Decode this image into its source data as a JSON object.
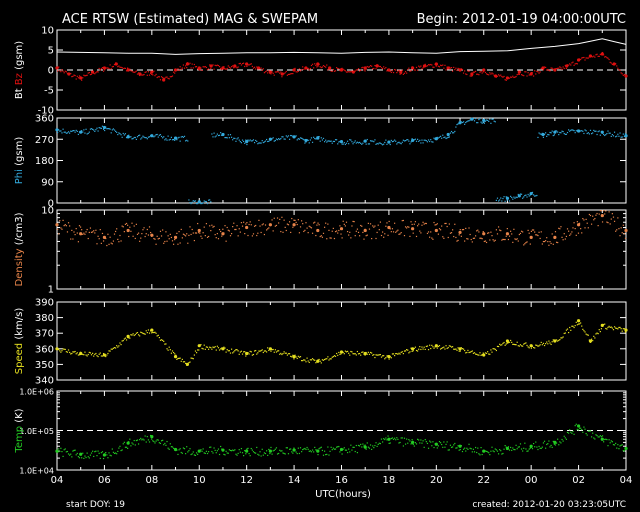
{
  "header": {
    "title": "ACE RTSW (Estimated) MAG & SWEPAM",
    "begin": "Begin: 2012-01-19 04:00:00UTC"
  },
  "footer": {
    "start_doy": "start DOY:  19",
    "created": "created: 2012-01-20 03:23:05UTC"
  },
  "colors": {
    "background": "#000000",
    "axes": "#ffffff",
    "bt": "#ffffff",
    "bz": "#e01010",
    "phi": "#33aadd",
    "density": "#e8844a",
    "speed": "#e6e020",
    "temp": "#22cc22"
  },
  "chart_data": {
    "type": "scatter",
    "x_axis": {
      "label": "UTC(hours)",
      "tick_labels": [
        "04",
        "06",
        "08",
        "10",
        "12",
        "14",
        "16",
        "18",
        "20",
        "22",
        "00",
        "02",
        "04"
      ],
      "range_hours": [
        0,
        24
      ]
    },
    "panels": [
      {
        "id": "mag",
        "ylabel_parts": [
          {
            "text": "Bt",
            "color": "#ffffff"
          },
          {
            "text": "Bz",
            "color": "#e01010"
          },
          {
            "text": "(gsm)",
            "color": "#ffffff"
          }
        ],
        "scale": "linear",
        "ylim": [
          -10,
          10
        ],
        "ticks": [
          10,
          5,
          0,
          -5,
          -10
        ],
        "tick_labels": [
          "10",
          "5",
          "0",
          "-5",
          "-10"
        ],
        "dashed_reference": 0,
        "series": [
          {
            "name": "Bt",
            "color": "#ffffff",
            "style": "line",
            "x": [
              0,
              1,
              2,
              3,
              4,
              5,
              6,
              7,
              8,
              9,
              10,
              11,
              12,
              13,
              14,
              15,
              16,
              17,
              18,
              19,
              20,
              21,
              22,
              22.5,
              23,
              23.5,
              24
            ],
            "values": [
              4.5,
              4.4,
              4.3,
              4.2,
              4.2,
              3.9,
              4.1,
              4.2,
              4.3,
              4.3,
              4.4,
              4.3,
              4.2,
              4.4,
              4.5,
              4.3,
              4.2,
              4.6,
              4.7,
              4.8,
              5.4,
              5.9,
              6.6,
              7.2,
              7.8,
              7.1,
              6.4
            ]
          },
          {
            "name": "Bz",
            "color": "#e01010",
            "style": "scatter",
            "x": [
              0,
              0.5,
              1,
              1.5,
              2,
              2.5,
              3,
              3.5,
              4,
              4.5,
              5,
              5.5,
              6,
              6.5,
              7,
              7.5,
              8,
              8.5,
              9,
              9.5,
              10,
              10.5,
              11,
              11.5,
              12,
              12.5,
              13,
              13.5,
              14,
              14.5,
              15,
              15.5,
              16,
              16.5,
              17,
              17.5,
              18,
              18.5,
              19,
              19.5,
              20,
              20.5,
              21,
              21.5,
              22,
              22.5,
              23,
              23.5,
              24
            ],
            "values": [
              0.5,
              -1,
              -2,
              -0.5,
              0.5,
              1.5,
              0,
              -1,
              -0.5,
              -2.5,
              0,
              1.5,
              0.5,
              1,
              0.5,
              1,
              1.5,
              0.5,
              -0.5,
              -1,
              0,
              0.5,
              1.5,
              0.5,
              0,
              -0.5,
              0.5,
              1,
              0,
              -0.5,
              0.5,
              1,
              1.5,
              0.5,
              0,
              -1,
              0,
              -1.5,
              -2,
              -0.5,
              -1,
              0.5,
              0,
              1,
              2.5,
              3.5,
              4,
              1.5,
              -1.5
            ]
          }
        ]
      },
      {
        "id": "phi",
        "ylabel_parts": [
          {
            "text": "Phi",
            "color": "#33aadd"
          },
          {
            "text": "(gsm)",
            "color": "#ffffff"
          }
        ],
        "scale": "linear",
        "ylim": [
          0,
          360
        ],
        "ticks": [
          360,
          270,
          180,
          90,
          0
        ],
        "tick_labels": [
          "360",
          "270",
          "180",
          "90",
          "0"
        ],
        "series": [
          {
            "name": "Phi",
            "color": "#33aadd",
            "style": "scatter",
            "x": [
              0,
              1,
              2,
              3,
              4,
              5,
              6,
              7,
              8,
              9,
              10,
              10.5,
              11,
              12,
              13,
              14,
              15,
              16,
              16.5,
              17,
              17.5,
              18,
              19,
              19.5,
              20,
              20.5,
              21,
              22,
              23,
              24
            ],
            "values": [
              310,
              300,
              320,
              280,
              285,
              275,
              5,
              290,
              260,
              270,
              280,
              265,
              275,
              260,
              262,
              258,
              265,
              272,
              290,
              340,
              355,
              350,
              20,
              30,
              40,
              290,
              300,
              305,
              300,
              285
            ]
          }
        ]
      },
      {
        "id": "density",
        "ylabel_parts": [
          {
            "text": "Density",
            "color": "#e8844a"
          },
          {
            "text": "(/cm3)",
            "color": "#ffffff"
          }
        ],
        "scale": "log",
        "ylim": [
          1,
          10
        ],
        "ticks": [
          10,
          1
        ],
        "tick_labels": [
          "10",
          "1"
        ],
        "series": [
          {
            "name": "Density",
            "color": "#e8844a",
            "style": "scatter",
            "x": [
              0,
              1,
              2,
              3,
              4,
              5,
              6,
              7,
              8,
              9,
              10,
              11,
              12,
              13,
              14,
              15,
              16,
              17,
              18,
              19,
              20,
              21,
              22,
              23,
              24
            ],
            "values": [
              6.5,
              5,
              4.5,
              5.5,
              4.8,
              4.5,
              5.5,
              5,
              6,
              6.5,
              6.5,
              5.5,
              5.8,
              5.5,
              6,
              5.8,
              5.5,
              5.2,
              5,
              5,
              4.5,
              4.5,
              6.5,
              8.5,
              5.5
            ]
          }
        ]
      },
      {
        "id": "speed",
        "ylabel_parts": [
          {
            "text": "Speed",
            "color": "#e6e020"
          },
          {
            "text": "(km/s)",
            "color": "#ffffff"
          }
        ],
        "scale": "linear",
        "ylim": [
          340,
          390
        ],
        "ticks": [
          390,
          380,
          370,
          360,
          350,
          340
        ],
        "tick_labels": [
          "390",
          "380",
          "370",
          "360",
          "350",
          "340"
        ],
        "series": [
          {
            "name": "Speed",
            "color": "#e6e020",
            "style": "scatter",
            "x": [
              0,
              1,
              2,
              3,
              4,
              5,
              5.5,
              6,
              7,
              8,
              9,
              10,
              11,
              12,
              13,
              14,
              15,
              16,
              17,
              18,
              19,
              20,
              21,
              22,
              22.5,
              23,
              24
            ],
            "values": [
              360,
              357,
              356,
              368,
              372,
              355,
              350,
              362,
              360,
              357,
              360,
              355,
              352,
              358,
              357,
              355,
              360,
              362,
              360,
              356,
              365,
              362,
              365,
              378,
              365,
              375,
              372
            ]
          }
        ]
      },
      {
        "id": "temp",
        "ylabel_parts": [
          {
            "text": "Temp",
            "color": "#22cc22"
          },
          {
            "text": "(K)",
            "color": "#ffffff"
          }
        ],
        "scale": "log",
        "ylim": [
          10000,
          1000000
        ],
        "ticks": [
          1000000,
          100000,
          10000
        ],
        "tick_labels": [
          "1.0E+06",
          "1.0E+05",
          "1.0E+04"
        ],
        "dashed_reference": 100000,
        "series": [
          {
            "name": "Temp",
            "color": "#22cc22",
            "style": "scatter",
            "x": [
              0,
              1,
              2,
              3,
              4,
              5,
              6,
              7,
              8,
              9,
              10,
              11,
              12,
              13,
              14,
              15,
              16,
              17,
              18,
              19,
              20,
              21,
              22,
              23,
              24
            ],
            "values": [
              30000,
              25000,
              24000,
              48000,
              70000,
              33000,
              30000,
              32000,
              30000,
              30000,
              32000,
              30000,
              33000,
              38000,
              60000,
              50000,
              45000,
              40000,
              30000,
              35000,
              40000,
              50000,
              130000,
              60000,
              35000
            ]
          }
        ]
      }
    ]
  }
}
